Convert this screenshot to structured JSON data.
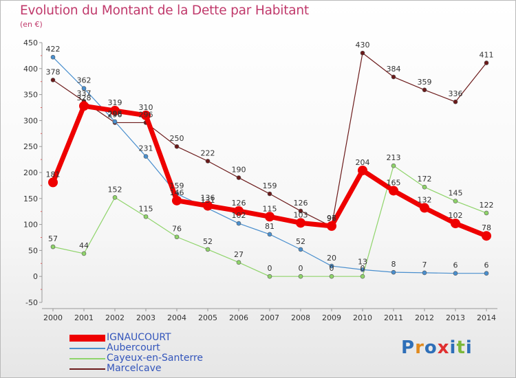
{
  "header": {
    "title": "Evolution du Montant de la Dette par Habitant",
    "subtitle": "(en €)"
  },
  "logo": {
    "text": "Proxiti",
    "letters": [
      "P",
      "r",
      "o",
      "x",
      "i",
      "t",
      "i"
    ],
    "colors": [
      "#2e6fb8",
      "#e08a1e",
      "#2e6fb8",
      "#e03030",
      "#2e6fb8",
      "#7cb83a",
      "#2e6fb8"
    ]
  },
  "chart_data": {
    "type": "line",
    "title": "Evolution du Montant de la Dette par Habitant",
    "subtitle": "(en €)",
    "xlabel": "",
    "ylabel": "",
    "ylim": [
      -50,
      450
    ],
    "yticks": [
      -50,
      0,
      50,
      100,
      150,
      200,
      250,
      300,
      350,
      400,
      450
    ],
    "categories": [
      "2000",
      "2001",
      "2002",
      "2003",
      "2004",
      "2005",
      "2006",
      "2007",
      "2008",
      "2009",
      "2010",
      "2011",
      "2012",
      "2013",
      "2014"
    ],
    "legend_position": "bottom-left",
    "grid": false,
    "series": [
      {
        "name": "Marcelcave",
        "color": "#6b1a1a",
        "width": 1.2,
        "marker_r": 3,
        "values": [
          378,
          337,
          296,
          296,
          250,
          222,
          190,
          159,
          126,
          96,
          430,
          384,
          359,
          336,
          411
        ],
        "labels": [
          "378",
          "337",
          "296",
          "296",
          "250",
          "222",
          "190",
          "159",
          "126",
          "96",
          "430",
          "384",
          "359",
          "336",
          "411"
        ]
      },
      {
        "name": "Cayeux-en-Santerre",
        "color": "#8fd46a",
        "width": 1.2,
        "marker_r": 3,
        "values": [
          57,
          44,
          152,
          115,
          76,
          52,
          27,
          0,
          0,
          0,
          0,
          213,
          172,
          145,
          122
        ],
        "labels": [
          "57",
          "44",
          "152",
          "115",
          "76",
          "52",
          "27",
          "0",
          "0",
          "0",
          "0",
          "213",
          "172",
          "145",
          "122"
        ]
      },
      {
        "name": "Aubercourt",
        "color": "#4a8fce",
        "width": 1.2,
        "marker_r": 3,
        "values": [
          422,
          362,
          298,
          231,
          159,
          131,
          102,
          81,
          52,
          20,
          13,
          8,
          7,
          6,
          6
        ],
        "labels": [
          "422",
          "362",
          "298",
          "231",
          "159",
          "131",
          "102",
          "81",
          "52",
          "20",
          "13",
          "8",
          "7",
          "6",
          "6"
        ]
      },
      {
        "name": "IGNAUCOURT",
        "color": "#ee0000",
        "width": 7,
        "marker_r": 6.5,
        "values": [
          181,
          328,
          319,
          310,
          146,
          136,
          126,
          115,
          103,
          97,
          204,
          165,
          132,
          102,
          78
        ],
        "labels": [
          "181",
          "328",
          "319",
          "310",
          "146",
          "136",
          "126",
          "115",
          "103",
          "97",
          "204",
          "165",
          "132",
          "102",
          "78"
        ]
      }
    ],
    "legend": [
      "IGNAUCOURT",
      "Aubercourt",
      "Cayeux-en-Santerre",
      "Marcelcave"
    ]
  }
}
